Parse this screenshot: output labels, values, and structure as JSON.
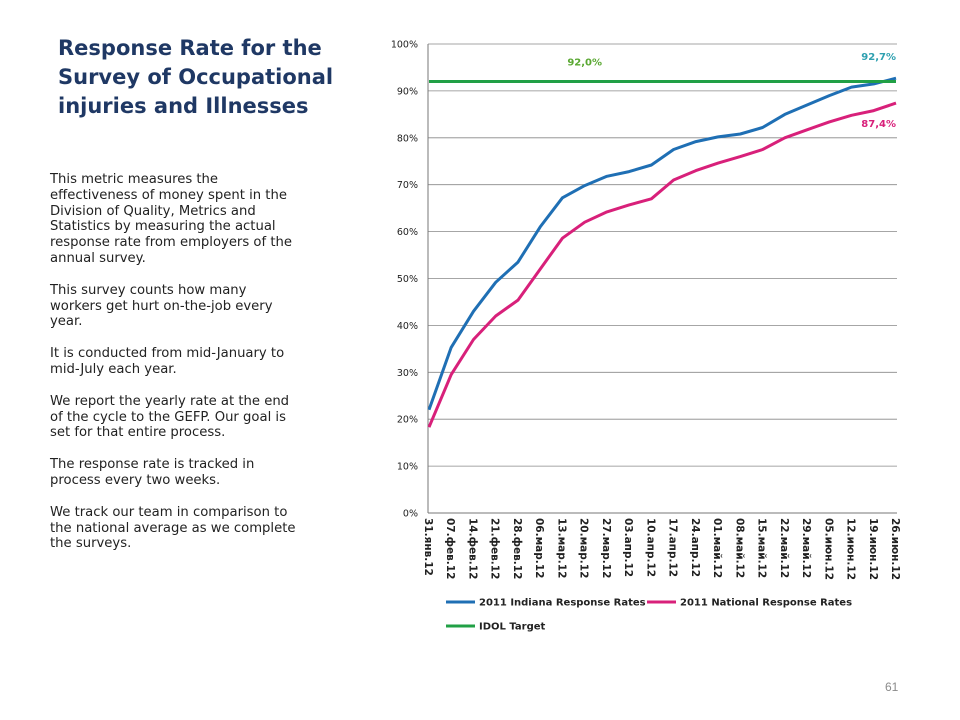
{
  "slide": {
    "title": "Response Rate for the Survey of Occupational injuries and Illnesses",
    "paragraphs": [
      "This metric measures  the effectiveness of money spent in the Division of Quality, Metrics and Statistics by measuring the actual response rate from employers of the annual survey.",
      "This survey counts how many workers get hurt on-the-job  every year.",
      "It is conducted from mid-January to mid-July each year.",
      "We report the yearly rate at the end of the cycle to the GEFP.  Our goal is set for that entire process.",
      "The response rate is tracked in process every two weeks.",
      "We track our team in comparison to the national average as we complete the surveys."
    ],
    "page_number": "61"
  },
  "chart_data": {
    "type": "line",
    "x": [
      "31.янв.12",
      "07.фев.12",
      "14.фев.12",
      "21.фев.12",
      "28.фев.12",
      "06.мар.12",
      "13.мар.12",
      "20.мар.12",
      "27.мар.12",
      "03.апр.12",
      "10.апр.12",
      "17.апр.12",
      "24.апр.12",
      "01.май.12",
      "08.май.12",
      "15.май.12",
      "22.май.12",
      "29.май.12",
      "05.июн.12",
      "12.июн.12",
      "19.июн.12",
      "26.июн.12"
    ],
    "y_ticks": [
      "0%",
      "10%",
      "20%",
      "30%",
      "40%",
      "50%",
      "60%",
      "70%",
      "80%",
      "90%",
      "100%"
    ],
    "ylim": [
      0,
      100
    ],
    "grid": true,
    "legend_position": "bottom",
    "series": [
      {
        "name": "2011 Indiana Response Rates",
        "color": "#1f6fb4",
        "values": [
          22,
          35.3,
          43,
          49.2,
          53.5,
          61,
          67.2,
          69.8,
          71.8,
          72.8,
          74.2,
          77.5,
          79.2,
          80.2,
          80.8,
          82.2,
          85,
          87,
          89,
          90.8,
          91.5,
          92.7
        ],
        "end_label": "92,7%",
        "end_label_color": "#2ea0b0"
      },
      {
        "name": "2011 National Response Rates",
        "color": "#d8207a",
        "values": [
          18.3,
          29.5,
          37,
          42,
          45.4,
          52,
          58.6,
          62,
          64.2,
          65.7,
          67,
          71,
          73,
          74.6,
          76,
          77.5,
          80,
          81.7,
          83.4,
          84.8,
          85.8,
          87.4
        ],
        "end_label": "87,4%",
        "end_label_color": "#d8207a"
      },
      {
        "name": "IDOL Target",
        "color": "#21a046",
        "values": [
          92,
          92,
          92,
          92,
          92,
          92,
          92,
          92,
          92,
          92,
          92,
          92,
          92,
          92,
          92,
          92,
          92,
          92,
          92,
          92,
          92,
          92
        ],
        "label": "92,0%",
        "label_color": "#5aa832"
      }
    ]
  }
}
